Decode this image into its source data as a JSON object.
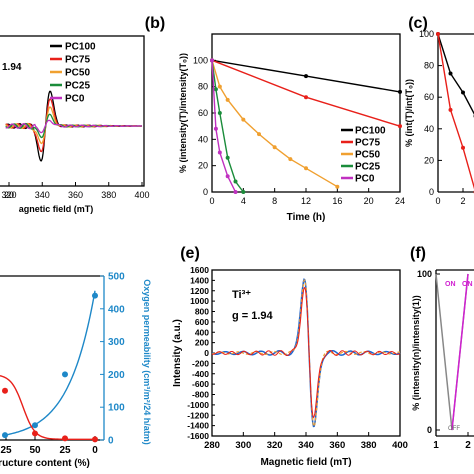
{
  "chart_data": [
    {
      "panel": "a",
      "panel_label": "",
      "type": "line",
      "xlabel_visible": "agnetic field (mT)",
      "x_ticks": [
        "20",
        "300",
        "320",
        "340",
        "360",
        "380",
        "400"
      ],
      "xlim": [
        318,
        400
      ],
      "annotation": "1.94",
      "legend": [
        "PC100",
        "PC75",
        "PC50",
        "PC25",
        "PC0"
      ],
      "colors": [
        "#000000",
        "#e8201a",
        "#f0a030",
        "#1a8c3a",
        "#c030c0"
      ],
      "series": [
        {
          "name": "PC100",
          "amp": 1.0
        },
        {
          "name": "PC75",
          "amp": 0.75
        },
        {
          "name": "PC50",
          "amp": 0.5
        },
        {
          "name": "PC25",
          "amp": 0.3
        },
        {
          "name": "PC0",
          "amp": 0.15
        }
      ]
    },
    {
      "panel": "b",
      "panel_label": "(b)",
      "type": "line",
      "xlabel": "Time (h)",
      "ylabel": "% (intensity(T)/intensity(T₀))",
      "x_ticks": [
        "0",
        "4",
        "8",
        "12",
        "16",
        "20",
        "24"
      ],
      "y_ticks": [
        "0",
        "20",
        "40",
        "60",
        "80",
        "100"
      ],
      "xlim": [
        0,
        24
      ],
      "ylim": [
        0,
        120
      ],
      "legend": [
        "PC100",
        "PC75",
        "PC50",
        "PC25",
        "PC0"
      ],
      "colors": [
        "#000000",
        "#e8201a",
        "#f0a030",
        "#1a8c3a",
        "#c030c0"
      ],
      "series": [
        {
          "name": "PC100",
          "x": [
            0,
            12,
            24
          ],
          "y": [
            100,
            88,
            76
          ]
        },
        {
          "name": "PC75",
          "x": [
            0,
            12,
            24
          ],
          "y": [
            100,
            72,
            50
          ]
        },
        {
          "name": "PC50",
          "x": [
            0,
            1,
            2,
            4,
            6,
            8,
            10,
            12,
            16
          ],
          "y": [
            100,
            80,
            70,
            55,
            44,
            34,
            25,
            18,
            4
          ]
        },
        {
          "name": "PC25",
          "x": [
            0,
            0.5,
            1,
            2,
            3,
            4
          ],
          "y": [
            100,
            78,
            60,
            26,
            8,
            0
          ]
        },
        {
          "name": "PC0",
          "x": [
            0,
            0.5,
            1,
            2,
            3
          ],
          "y": [
            100,
            48,
            30,
            12,
            0
          ]
        }
      ]
    },
    {
      "panel": "c",
      "panel_label": "(c)",
      "type": "line",
      "ylabel": "% (int(T)/int(T₀))",
      "x_ticks": [
        "0",
        "2"
      ],
      "y_ticks": [
        "0",
        "20",
        "40",
        "60",
        "80",
        "100"
      ],
      "xlim": [
        0,
        4
      ],
      "ylim": [
        0,
        100
      ],
      "series": [
        {
          "name": "black",
          "x": [
            0,
            1,
            2,
            3,
            4
          ],
          "y": [
            100,
            75,
            63,
            48,
            25
          ]
        },
        {
          "name": "red",
          "x": [
            0,
            1,
            2,
            3
          ],
          "y": [
            100,
            52,
            28,
            0
          ]
        }
      ]
    },
    {
      "panel": "d",
      "panel_label": "",
      "type": "line",
      "xlabel_visible": "ructure content (%)",
      "ylabel_right": "Oxygen permeability (cm³/m²/24 h/atm)",
      "x_ticks": [
        "25",
        "50",
        "25",
        "0"
      ],
      "y_right_ticks": [
        "0",
        "100",
        "200",
        "300",
        "400",
        "500"
      ],
      "ylim_right": [
        0,
        500
      ],
      "series": [
        {
          "name": "blue",
          "x": [
            100,
            75,
            50,
            25,
            0
          ],
          "y": [
            0,
            15,
            45,
            200,
            440
          ]
        },
        {
          "name": "red",
          "x": [
            100,
            75,
            50,
            25,
            0
          ],
          "y": [
            200,
            150,
            20,
            5,
            2
          ]
        }
      ]
    },
    {
      "panel": "e",
      "panel_label": "(e)",
      "type": "line",
      "xlabel": "Magnetic field (mT)",
      "ylabel": "Intensity (a.u.)",
      "x_ticks": [
        "280",
        "300",
        "320",
        "340",
        "360",
        "380",
        "400"
      ],
      "y_ticks": [
        "-1600",
        "-1400",
        "-1200",
        "-1000",
        "-800",
        "-600",
        "-400",
        "-200",
        "0",
        "200",
        "400",
        "600",
        "800",
        "1000",
        "1200",
        "1400",
        "1600"
      ],
      "xlim": [
        280,
        400
      ],
      "ylim": [
        -1600,
        1600
      ],
      "annotation_species": "Ti³⁺",
      "annotation_g": "g = 1.94",
      "series": [
        {
          "name": "blue",
          "peak_x": 339,
          "peak_y": 1500,
          "trough_x": 345,
          "trough_y": -1560
        },
        {
          "name": "orange",
          "peak_x": 339,
          "peak_y": 1450,
          "trough_x": 345,
          "trough_y": -1500
        }
      ]
    },
    {
      "panel": "f",
      "panel_label": "(f)",
      "type": "line",
      "ylabel": "% (intensity(n)/intensity(1))",
      "x_ticks": [
        "1",
        "2"
      ],
      "y_ticks": [
        "0",
        "100"
      ],
      "labels": [
        "ON",
        "ON",
        "OFF"
      ],
      "series": [
        {
          "name": "gray",
          "x": [
            1,
            1.5,
            2
          ],
          "y": [
            100,
            0,
            100
          ]
        },
        {
          "name": "magenta",
          "x": [
            1.5,
            2
          ],
          "y": [
            0,
            100
          ]
        }
      ]
    }
  ]
}
